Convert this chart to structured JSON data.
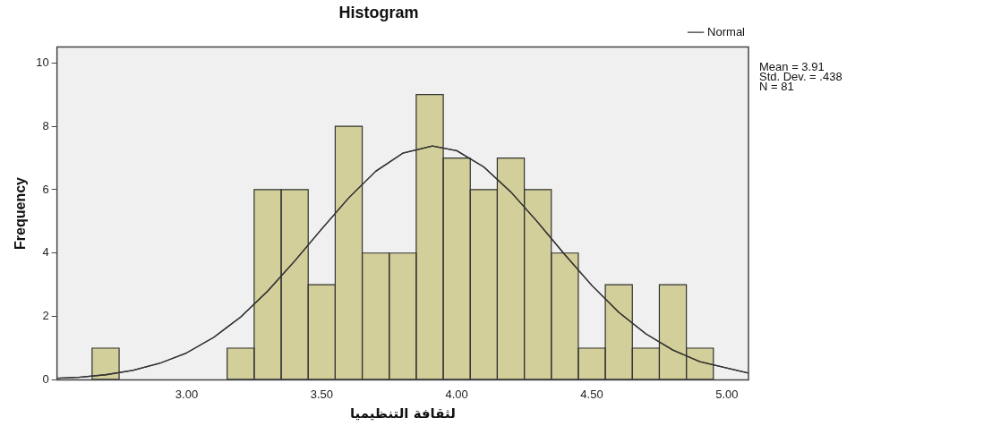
{
  "chart_data": {
    "type": "histogram",
    "title": "Histogram",
    "xlabel": "لثقافة التنظيميا",
    "ylabel": "Frequency",
    "series": [
      {
        "color": "#d3cf9a",
        "bins": [
          2.65,
          2.75,
          2.85,
          2.95,
          3.05,
          3.15,
          3.25,
          3.35,
          3.45,
          3.55,
          3.65,
          3.75,
          3.85,
          3.95,
          4.05,
          4.15,
          4.25,
          4.35,
          4.45,
          4.55,
          4.65,
          4.75,
          4.85,
          4.95
        ],
        "values": [
          1,
          0,
          0,
          0,
          0,
          1,
          6,
          6,
          3,
          8,
          4,
          4,
          9,
          7,
          6,
          7,
          6,
          4,
          1,
          3,
          1,
          3,
          1
        ]
      },
      {
        "type": "line",
        "name": "Normal",
        "color": "#333333",
        "x": [
          2.52,
          2.6,
          2.7,
          2.8,
          2.9,
          3.0,
          3.1,
          3.2,
          3.3,
          3.4,
          3.5,
          3.6,
          3.7,
          3.8,
          3.91,
          4.0,
          4.1,
          4.2,
          4.3,
          4.4,
          4.5,
          4.6,
          4.7,
          4.8,
          4.9,
          5.08
        ],
        "values": [
          0.05,
          0.08,
          0.16,
          0.3,
          0.52,
          0.85,
          1.34,
          1.98,
          2.8,
          3.75,
          4.76,
          5.74,
          6.58,
          7.15,
          7.38,
          7.23,
          6.72,
          5.93,
          4.97,
          3.95,
          2.98,
          2.13,
          1.45,
          0.94,
          0.57,
          0.21
        ]
      }
    ],
    "xlim": [
      2.52,
      5.08
    ],
    "xticks": [
      {
        "value": 3,
        "label": "3.00"
      },
      {
        "value": 3.5,
        "label": "3.50"
      },
      {
        "value": 4,
        "label": "4.00"
      },
      {
        "value": 4.5,
        "label": "4.50"
      },
      {
        "value": 5,
        "label": "5.00"
      }
    ],
    "ylim": [
      0,
      10.5
    ],
    "yticks": [
      0,
      2,
      4,
      6,
      8,
      10
    ],
    "grid": false,
    "legend": "top right",
    "marker": "none",
    "line_style": "solid",
    "annotations": [
      "Mean = 3.91",
      "Std. Dev. = .438",
      "N = 81"
    ]
  }
}
